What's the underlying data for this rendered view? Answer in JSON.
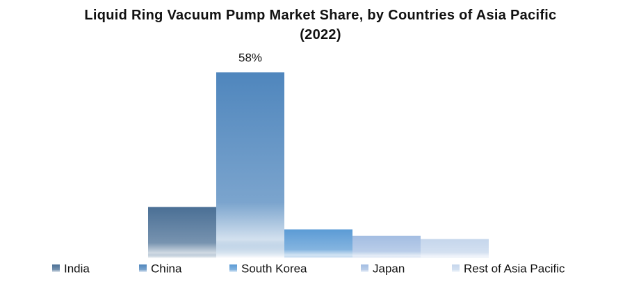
{
  "chart_data": {
    "type": "bar",
    "title": "Liquid Ring Vacuum Pump Market Share, by Countries of Asia Pacific (2022)",
    "series": [
      {
        "name": "India",
        "color": "#4a6f95",
        "values": [
          16
        ]
      },
      {
        "name": "China",
        "color": "#4f86bd",
        "values": [
          58
        ],
        "value_labels": [
          "58%"
        ]
      },
      {
        "name": "South Korea",
        "color": "#5b9bd5",
        "values": [
          9
        ]
      },
      {
        "name": "Japan",
        "color": "#a3bde2",
        "values": [
          7
        ]
      },
      {
        "name": "Rest of Asia Pacific",
        "color": "#c5d6ec",
        "values": [
          6
        ]
      }
    ],
    "legend": "bottom"
  }
}
